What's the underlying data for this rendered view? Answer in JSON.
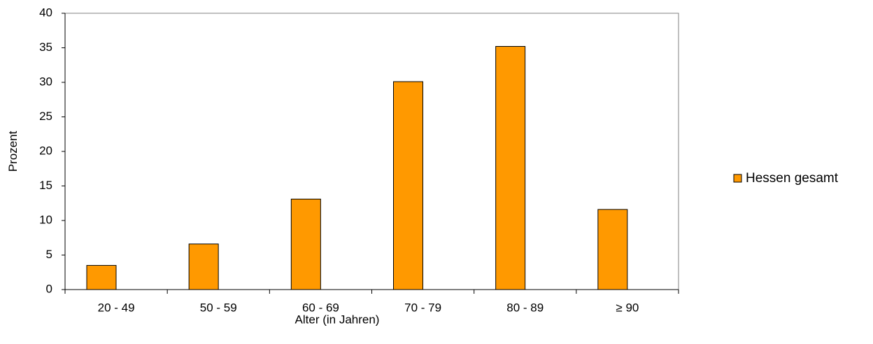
{
  "chart_data": {
    "type": "bar",
    "title": "",
    "xlabel": "Alter (in Jahren)",
    "ylabel": "Prozent",
    "categories": [
      "20 - 49",
      "50 - 59",
      "60 - 69",
      "70 - 79",
      "80 - 89",
      "≥ 90"
    ],
    "series": [
      {
        "name": "Hessen gesamt",
        "color": "#ff9900",
        "values": [
          3.5,
          6.6,
          13.1,
          30.1,
          35.2,
          11.6
        ]
      }
    ],
    "ylim": [
      0,
      40
    ],
    "yticks": [
      0,
      5,
      10,
      15,
      20,
      25,
      30,
      35,
      40
    ],
    "grid": false,
    "legend_position": "right"
  }
}
